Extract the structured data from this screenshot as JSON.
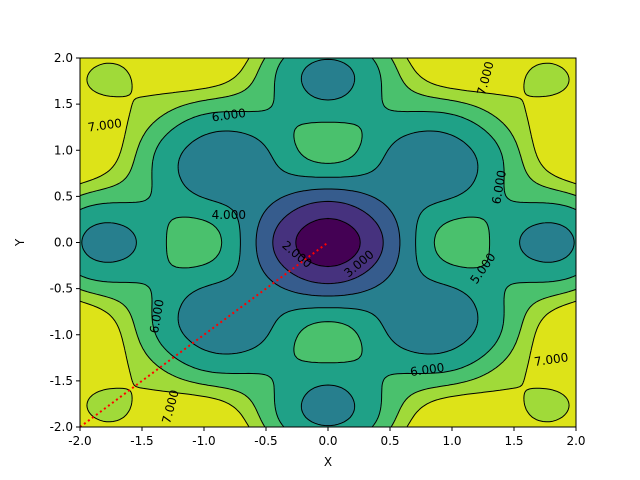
{
  "chart_data": {
    "type": "contour",
    "title": "",
    "xlabel": "X",
    "ylabel": "Y",
    "xlim": [
      -2.0,
      2.0
    ],
    "ylim": [
      -2.0,
      2.0
    ],
    "x_ticks": [
      "-2.0",
      "-1.5",
      "-1.0",
      "-0.5",
      "0.0",
      "0.5",
      "1.0",
      "1.5",
      "2.0"
    ],
    "y_ticks": [
      "-2.0",
      "-1.5",
      "-1.0",
      "-0.5",
      "0.0",
      "0.5",
      "1.0",
      "1.5",
      "2.0"
    ],
    "grid": false,
    "filled_levels": [
      0,
      1,
      2,
      3,
      4,
      5,
      6,
      7,
      8
    ],
    "line_levels": [
      1,
      2,
      3,
      4,
      5,
      6,
      7
    ],
    "level_colors": [
      "#440154",
      "#46327e",
      "#365c8d",
      "#277f8e",
      "#1fa187",
      "#4ac16d",
      "#a0da39",
      "#dde318"
    ],
    "line_style": "dashed",
    "contour_labels": [
      {
        "text": "2.000",
        "x": -0.25,
        "y": -0.13,
        "rotation": 40
      },
      {
        "text": "3.000",
        "x": 0.25,
        "y": -0.23,
        "rotation": -40
      },
      {
        "text": "4.000",
        "x": -0.8,
        "y": 0.3,
        "rotation": 0
      },
      {
        "text": "5.000",
        "x": 1.25,
        "y": -0.28,
        "rotation": -55
      },
      {
        "text": "6.000",
        "x": -0.8,
        "y": 1.38,
        "rotation": -8
      },
      {
        "text": "6.000",
        "x": 1.38,
        "y": 0.6,
        "rotation": -80
      },
      {
        "text": "6.000",
        "x": -1.38,
        "y": -0.8,
        "rotation": -80
      },
      {
        "text": "6.000",
        "x": 0.8,
        "y": -1.38,
        "rotation": -8
      },
      {
        "text": "7.000",
        "x": -1.8,
        "y": 1.27,
        "rotation": -8
      },
      {
        "text": "7.000",
        "x": 1.27,
        "y": 1.78,
        "rotation": -75
      },
      {
        "text": "7.000",
        "x": 1.8,
        "y": -1.27,
        "rotation": -8
      },
      {
        "text": "7.000",
        "x": -1.27,
        "y": -1.78,
        "rotation": -75
      }
    ],
    "path_line": {
      "color": "#ff0000",
      "style": "dotted",
      "points": [
        [
          -2.0,
          -2.0
        ],
        [
          0.0,
          0.0
        ]
      ]
    }
  }
}
